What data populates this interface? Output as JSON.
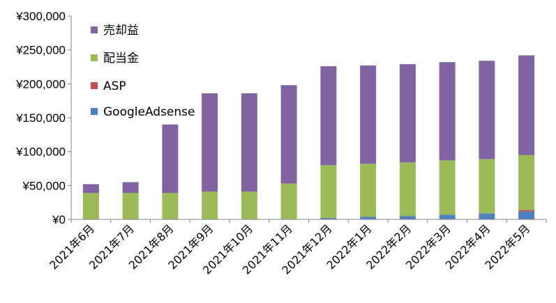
{
  "chart_data": {
    "type": "bar",
    "stacked": true,
    "categories": [
      "2021年6月",
      "2021年7月",
      "2021年8月",
      "2021年9月",
      "2021年10月",
      "2021年11月",
      "2021年12月",
      "2022年1月",
      "2022年2月",
      "2022年3月",
      "2022年4月",
      "2022年5月"
    ],
    "series": [
      {
        "name": "GoogleAdsense",
        "color": "#4f81bd",
        "values": [
          0,
          0,
          0,
          0,
          0,
          0,
          2000,
          4000,
          5000,
          7000,
          9000,
          12000
        ]
      },
      {
        "name": "ASP",
        "color": "#c0504d",
        "values": [
          0,
          0,
          0,
          0,
          0,
          0,
          0,
          0,
          0,
          0,
          0,
          2000
        ]
      },
      {
        "name": "配当金",
        "color": "#9bbb59",
        "values": [
          39000,
          39000,
          39000,
          41000,
          41000,
          53000,
          78000,
          78000,
          79000,
          80000,
          80000,
          81000
        ]
      },
      {
        "name": "売却益",
        "color": "#8064a2",
        "values": [
          13000,
          16000,
          101000,
          145000,
          145000,
          145000,
          146000,
          145000,
          145000,
          145000,
          145000,
          147000
        ]
      }
    ],
    "y_ticks": [
      "¥0",
      "¥50,000",
      "¥100,000",
      "¥150,000",
      "¥200,000",
      "¥250,000",
      "¥300,000"
    ],
    "ylim": [
      0,
      300000
    ],
    "title": "",
    "xlabel": "",
    "ylabel": "",
    "grid": false,
    "legend": {
      "placement": "top-left-inside",
      "order": [
        "売却益",
        "配当金",
        "ASP",
        "GoogleAdsense"
      ]
    }
  }
}
